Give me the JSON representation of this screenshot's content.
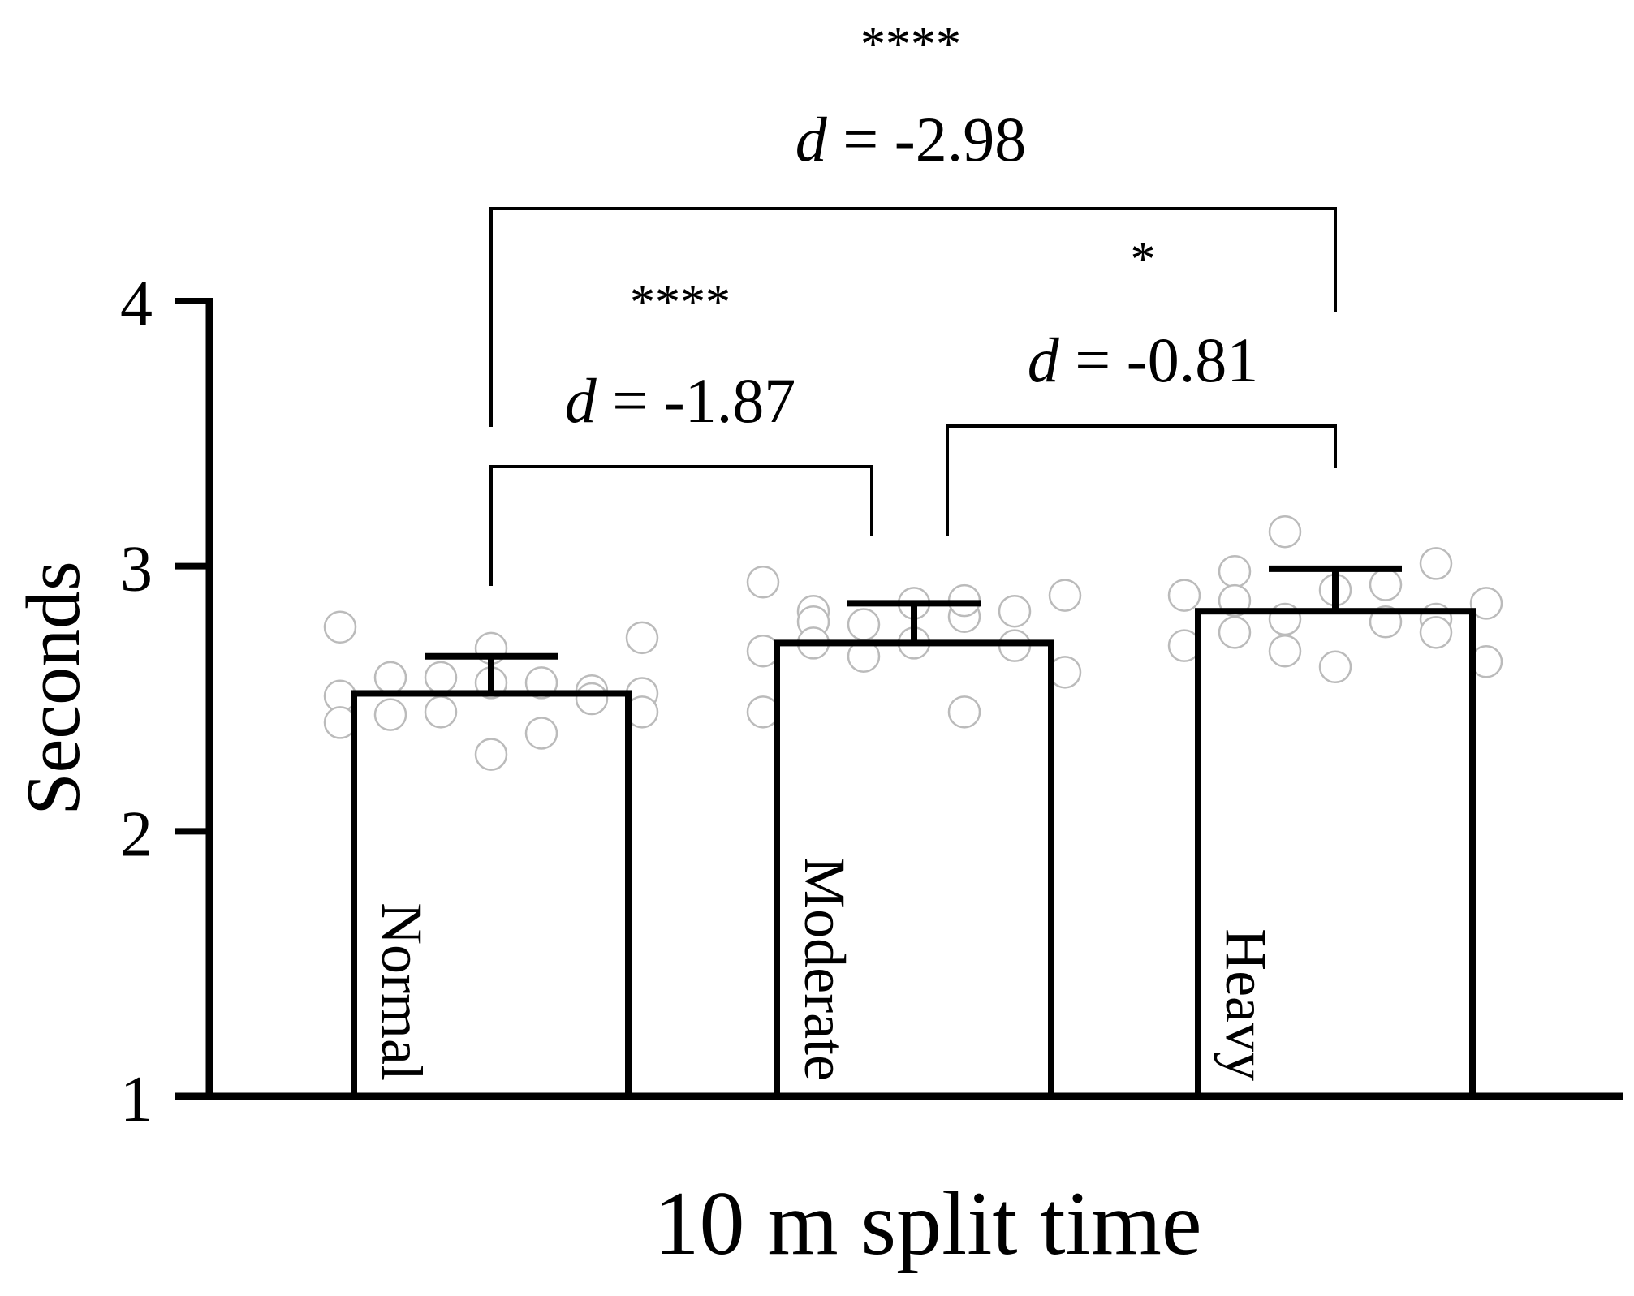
{
  "chart_data": {
    "type": "bar",
    "categories": [
      "Normal",
      "Moderate",
      "Heavy"
    ],
    "values": [
      2.52,
      2.71,
      2.83
    ],
    "error_sd": [
      0.14,
      0.15,
      0.16
    ],
    "xlabel": "10 m split time",
    "ylabel": "Seconds",
    "ylim": [
      1,
      4
    ],
    "yticks": [
      "1",
      "2",
      "3",
      "4"
    ],
    "points": [
      [
        2.77,
        2.69,
        2.73,
        2.58,
        2.53,
        2.58,
        2.56,
        2.51,
        2.56,
        2.52,
        2.45,
        2.5,
        2.44,
        2.37,
        2.41,
        2.29,
        2.45
      ],
      [
        2.83,
        2.81,
        2.94,
        2.86,
        2.89,
        2.78,
        2.83,
        2.79,
        2.87,
        2.68,
        2.71,
        2.6,
        2.66,
        2.7,
        2.71,
        2.45,
        2.45
      ],
      [
        3.13,
        3.01,
        2.98,
        2.93,
        2.89,
        2.91,
        2.86,
        2.8,
        2.8,
        2.75,
        2.79,
        2.7,
        2.62,
        2.64,
        2.68,
        2.75,
        2.87
      ]
    ],
    "comparisons": [
      {
        "from": 0,
        "to": 1,
        "stars": "****",
        "effect": "-1.87"
      },
      {
        "from": 1,
        "to": 2,
        "stars": "*",
        "effect": "-0.81"
      },
      {
        "from": 0,
        "to": 2,
        "stars": "****",
        "effect": "-2.98"
      }
    ],
    "effect_prefix": "d",
    "effect_eq": " = ",
    "grid": false,
    "legend": "none"
  }
}
